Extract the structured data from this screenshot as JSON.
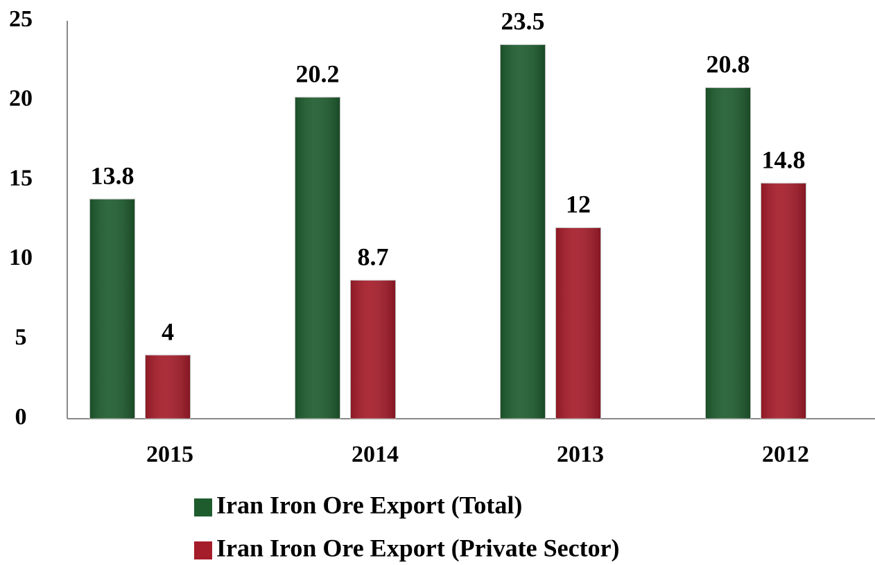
{
  "chart_data": {
    "type": "bar",
    "categories": [
      "2015",
      "2014",
      "2013",
      "2012"
    ],
    "series": [
      {
        "name": "Iran Iron Ore Export (Total)",
        "color": "#1e5c2e",
        "values": [
          13.8,
          20.2,
          23.5,
          20.8
        ]
      },
      {
        "name": "Iran Iron Ore Export (Private Sector)",
        "color": "#a51c2a",
        "values": [
          4,
          8.7,
          12,
          14.8
        ]
      }
    ],
    "ylim": [
      0,
      25
    ],
    "yticks": [
      0,
      5,
      10,
      15,
      20,
      25
    ],
    "grid": false,
    "legend": "bottom"
  }
}
